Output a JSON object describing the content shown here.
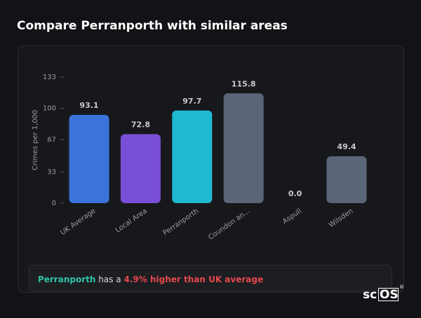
{
  "header": {
    "title": "Compare Perranporth with similar areas"
  },
  "chart_data": {
    "type": "bar",
    "y_label": "Crimes per 1,000",
    "categories": [
      "UK Average",
      "Local Area",
      "Perranporth",
      "Coundon an...",
      "Aspull",
      "Wilsden"
    ],
    "values": [
      93.1,
      72.8,
      97.7,
      115.8,
      0,
      49.4
    ],
    "value_labels": [
      "93.1",
      "72.8",
      "97.7",
      "115.8",
      "0.0",
      "49.4"
    ],
    "colors": [
      "#3a74da",
      "#7a4fd8",
      "#20b9d1",
      "#5a6578",
      "#5a6578",
      "#5a6578"
    ],
    "ylim": [
      0,
      133
    ],
    "yticks": [
      0,
      33,
      67,
      100,
      133
    ],
    "grid": false
  },
  "summary": {
    "area": "Perranporth",
    "middle": "has a",
    "highlight": "4.9% higher than UK average"
  },
  "logo": {
    "prefix": "sc",
    "boxed": "OS",
    "mark": "®"
  }
}
